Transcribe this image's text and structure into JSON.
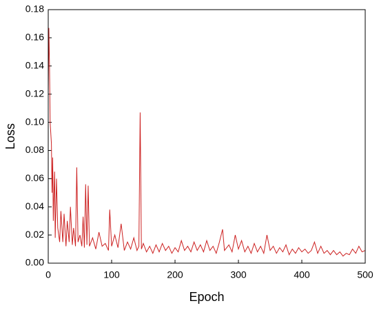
{
  "chart_data": {
    "type": "line",
    "x_label": "Epoch",
    "y_label": "Loss",
    "color": "#cc2020",
    "x": [
      0,
      1,
      2,
      3,
      5,
      6,
      7,
      8,
      9,
      10,
      11,
      13,
      15,
      18,
      20,
      23,
      25,
      28,
      30,
      33,
      35,
      38,
      40,
      43,
      45,
      47,
      50,
      53,
      55,
      57,
      59,
      61,
      63,
      65,
      70,
      75,
      80,
      85,
      90,
      95,
      97,
      100,
      105,
      110,
      115,
      120,
      125,
      130,
      135,
      140,
      143,
      145,
      147,
      150,
      155,
      160,
      165,
      170,
      175,
      180,
      185,
      190,
      195,
      200,
      205,
      210,
      215,
      220,
      225,
      230,
      235,
      240,
      245,
      250,
      255,
      260,
      265,
      270,
      275,
      278,
      285,
      290,
      295,
      300,
      305,
      310,
      315,
      320,
      325,
      330,
      335,
      340,
      345,
      350,
      355,
      360,
      365,
      370,
      375,
      380,
      385,
      390,
      395,
      400,
      405,
      410,
      415,
      420,
      425,
      430,
      435,
      440,
      445,
      450,
      455,
      460,
      465,
      470,
      475,
      480,
      485,
      490,
      495,
      500
    ],
    "values": [
      0.12,
      0.167,
      0.14,
      0.1,
      0.085,
      0.05,
      0.075,
      0.03,
      0.05,
      0.065,
      0.018,
      0.06,
      0.025,
      0.015,
      0.037,
      0.015,
      0.035,
      0.012,
      0.03,
      0.015,
      0.04,
      0.013,
      0.025,
      0.012,
      0.068,
      0.015,
      0.02,
      0.012,
      0.033,
      0.011,
      0.056,
      0.013,
      0.055,
      0.012,
      0.018,
      0.01,
      0.022,
      0.012,
      0.014,
      0.009,
      0.038,
      0.012,
      0.02,
      0.011,
      0.028,
      0.009,
      0.015,
      0.01,
      0.018,
      0.009,
      0.012,
      0.107,
      0.01,
      0.014,
      0.008,
      0.012,
      0.007,
      0.013,
      0.008,
      0.014,
      0.009,
      0.012,
      0.007,
      0.011,
      0.008,
      0.016,
      0.009,
      0.012,
      0.008,
      0.015,
      0.009,
      0.013,
      0.008,
      0.016,
      0.009,
      0.012,
      0.007,
      0.015,
      0.024,
      0.009,
      0.013,
      0.008,
      0.02,
      0.01,
      0.016,
      0.008,
      0.012,
      0.007,
      0.014,
      0.008,
      0.012,
      0.007,
      0.02,
      0.009,
      0.012,
      0.007,
      0.011,
      0.008,
      0.013,
      0.006,
      0.01,
      0.007,
      0.011,
      0.008,
      0.01,
      0.007,
      0.009,
      0.015,
      0.007,
      0.012,
      0.007,
      0.009,
      0.006,
      0.009,
      0.006,
      0.008,
      0.005,
      0.007,
      0.006,
      0.01,
      0.007,
      0.012,
      0.008,
      0.009
    ],
    "xlim": [
      0,
      500
    ],
    "ylim": [
      0,
      0.18
    ],
    "xticks": [
      0,
      100,
      200,
      300,
      400,
      500
    ],
    "yticks": [
      {
        "value": 0,
        "label": "0.00"
      },
      {
        "value": 0.02,
        "label": "0.02"
      },
      {
        "value": 0.04,
        "label": "0.04"
      },
      {
        "value": 0.06,
        "label": "0.06"
      },
      {
        "value": 0.08,
        "label": "0.08"
      },
      {
        "value": 0.1,
        "label": "0.10"
      },
      {
        "value": 0.12,
        "label": "0.12"
      },
      {
        "value": 0.14,
        "label": "0.14"
      },
      {
        "value": 0.16,
        "label": "0.16"
      },
      {
        "value": 0.18,
        "label": "0.18"
      }
    ]
  }
}
